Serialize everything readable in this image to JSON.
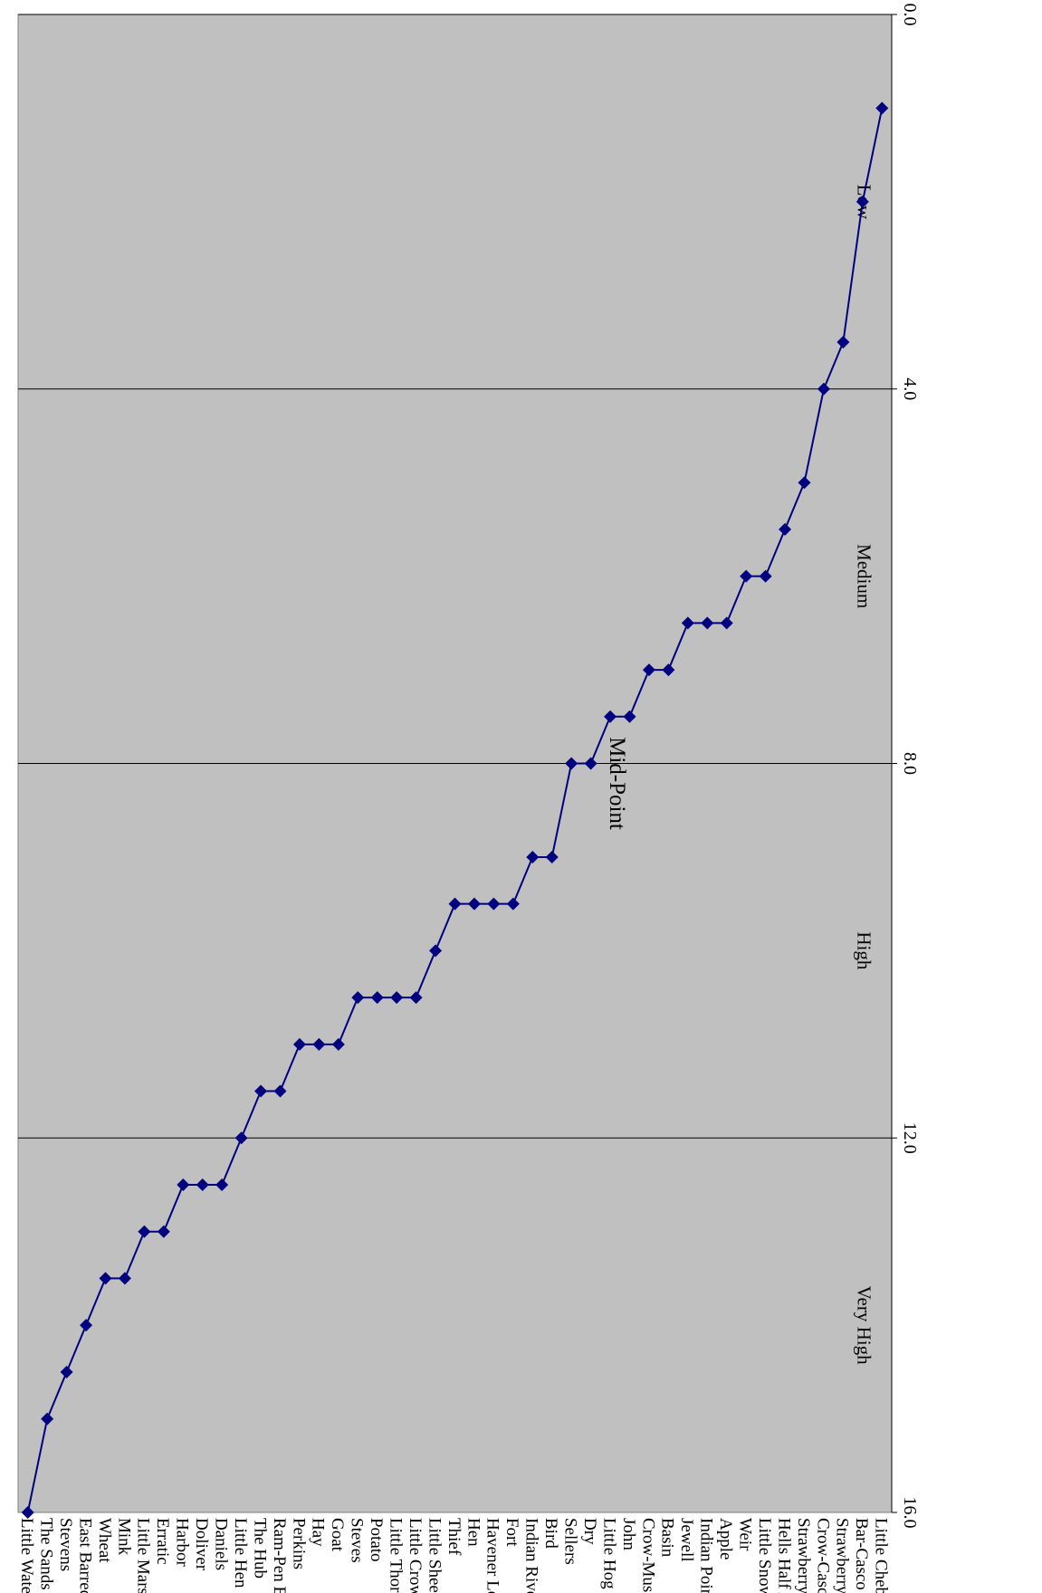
{
  "chart_data": {
    "type": "line",
    "orientation": "rotated-180",
    "categories": [
      "Little Chebeague",
      "Bar-Casco",
      "Strawberry Creek",
      "Crow-Casco",
      "Strawberry",
      "Hells Half Acre",
      "Little Snow",
      "Weir",
      "Apple",
      "Indian Point",
      "Jewell",
      "Basin",
      "Crow-Muscongus",
      "John",
      "Little Hog",
      "Dry",
      "Sellers",
      "Bird",
      "Indian River",
      "Fort",
      "Havener Ledge",
      "Hen",
      "Thief",
      "Little Sheep",
      "Little Crow",
      "Little Thorofare",
      "Potato",
      "Steves",
      "Goat",
      "Hay",
      "Perkins",
      "Ram-Pen Bay",
      "The Hub",
      "Little Hen",
      "Daniels",
      "Doliver",
      "Harbor",
      "Erratic",
      "Little Marsh",
      "Mink",
      "Wheat",
      "East Barred",
      "Stevens",
      "The Sands",
      "Little Water"
    ],
    "series": [
      {
        "values": [
          1.0,
          2.0,
          3.5,
          4.0,
          5.0,
          5.5,
          6.0,
          6.0,
          6.5,
          6.5,
          6.5,
          7.0,
          7.0,
          7.5,
          7.5,
          8.0,
          8.0,
          9.0,
          9.0,
          9.5,
          9.5,
          9.5,
          9.5,
          10.0,
          10.5,
          10.5,
          10.5,
          10.5,
          11.0,
          11.0,
          11.0,
          11.5,
          11.5,
          12.0,
          12.5,
          12.5,
          12.5,
          13.0,
          13.0,
          13.5,
          13.5,
          14.0,
          14.5,
          15.0,
          16.0
        ],
        "color": "#000080"
      }
    ],
    "yticks": [
      "0.0",
      "4.0",
      "8.0",
      "12.0",
      "16.0"
    ],
    "ylim": [
      0,
      16
    ],
    "grid": true,
    "plot_background": "#c0c0c0",
    "bands": [
      {
        "label": "Low",
        "from": 0,
        "to": 4
      },
      {
        "label": "Medium",
        "from": 4,
        "to": 8
      },
      {
        "label": "High",
        "from": 8,
        "to": 12
      },
      {
        "label": "Very High",
        "from": 12,
        "to": 16
      }
    ],
    "annotations": [
      {
        "text": "Mid-Point",
        "y": 8
      }
    ]
  }
}
